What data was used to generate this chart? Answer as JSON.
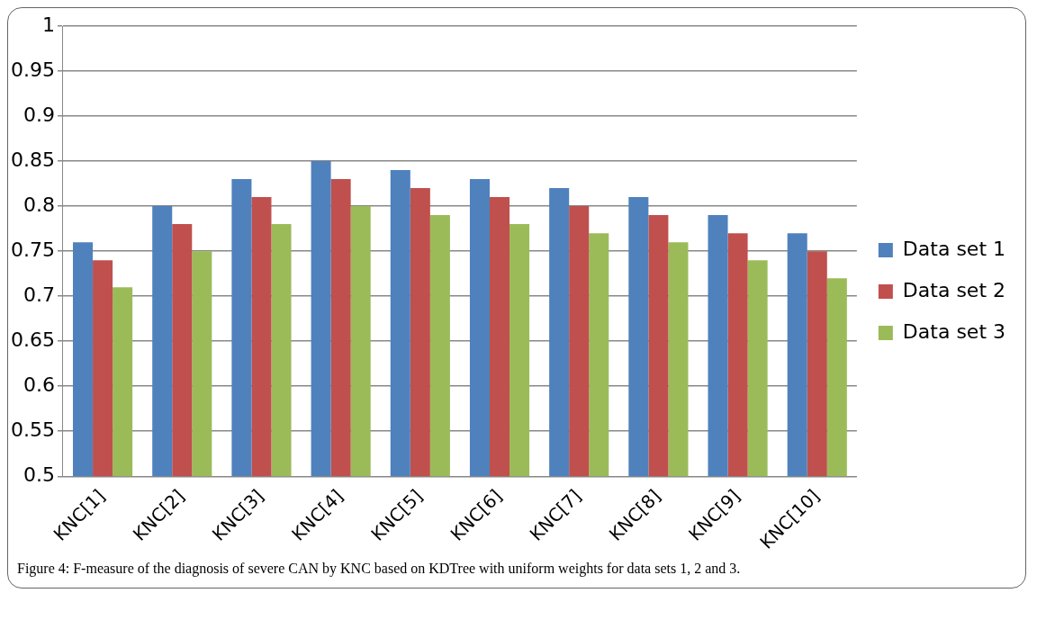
{
  "chart_data": {
    "type": "bar",
    "categories": [
      "KNC[1]",
      "KNC[2]",
      "KNC[3]",
      "KNC[4]",
      "KNC[5]",
      "KNC[6]",
      "KNC[7]",
      "KNC[8]",
      "KNC[9]",
      "KNC[10]"
    ],
    "series": [
      {
        "name": "Data set 1",
        "color": "#4f81bd",
        "values": [
          0.76,
          0.8,
          0.83,
          0.85,
          0.84,
          0.83,
          0.82,
          0.81,
          0.79,
          0.77
        ]
      },
      {
        "name": "Data set 2",
        "color": "#c0504d",
        "values": [
          0.74,
          0.78,
          0.81,
          0.83,
          0.82,
          0.81,
          0.8,
          0.79,
          0.77,
          0.75
        ]
      },
      {
        "name": "Data set 3",
        "color": "#9bbb59",
        "values": [
          0.71,
          0.75,
          0.78,
          0.8,
          0.79,
          0.78,
          0.77,
          0.76,
          0.74,
          0.72
        ]
      }
    ],
    "ylim": [
      0.5,
      1
    ],
    "yticks": [
      0.5,
      0.55,
      0.6,
      0.65,
      0.7,
      0.75,
      0.8,
      0.85,
      0.9,
      0.95,
      1
    ],
    "grid": "y",
    "legend": "right",
    "annotations": [
      "Figure 4: F-measure of the diagnosis of severe CAN by KNC based on KDTree with uniform weights for data sets 1, 2 and 3."
    ]
  }
}
